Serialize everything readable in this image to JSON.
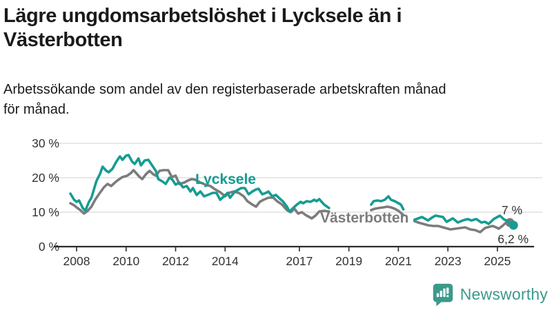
{
  "header": {
    "title": "Lägre ungdomsarbetslöshet i Lycksele än i Västerbotten",
    "title_lines": [
      "Lägre ungdomsarbetslöshet i Lycksele än i",
      "Västerbotten"
    ],
    "subtitle": "Arbetssökande som andel av den registerbaserade arbetskraften månad för månad.",
    "subtitle_lines": [
      "Arbetssökande som andel av den registerbaserade arbetskraften månad",
      "för månad."
    ]
  },
  "footer": {
    "brand": "Newsworthy",
    "brand_color": "#3b9a8b",
    "logo_icon": "speech-bubble-bar-chart-exclamation"
  },
  "chart_data": {
    "type": "line",
    "unit": "%",
    "ylim": [
      0,
      30
    ],
    "grid": "horizontal",
    "axis_color": "#2b2b2b",
    "grid_color": "#dadada",
    "tick_label_color": "#333333",
    "end_label_color": "#333333",
    "yticks": [
      {
        "value": 0,
        "label": "0 %"
      },
      {
        "value": 10,
        "label": "10 %"
      },
      {
        "value": 20,
        "label": "20 %"
      },
      {
        "value": 30,
        "label": "30 %"
      }
    ],
    "xticks": [
      {
        "year": 2008,
        "label": "2008"
      },
      {
        "year": 2010,
        "label": "2010"
      },
      {
        "year": 2012,
        "label": "2012"
      },
      {
        "year": 2014,
        "label": "2014"
      },
      {
        "year": 2017,
        "label": "2017"
      },
      {
        "year": 2019,
        "label": "2019"
      },
      {
        "year": 2021,
        "label": "2021"
      },
      {
        "year": 2023,
        "label": "2023"
      },
      {
        "year": 2025,
        "label": "2025"
      }
    ],
    "series": [
      {
        "name": "Lycksele",
        "color": "#169c92",
        "label_pos": {
          "x": 283,
          "y": 267
        },
        "end_value": 6.2,
        "end_label": {
          "text": "6,2 %",
          "x": 766,
          "y": 353
        },
        "segments": [
          [
            [
              2007.75,
              15.4
            ],
            [
              2007.9,
              13.6
            ],
            [
              2008.0,
              13.0
            ],
            [
              2008.1,
              13.4
            ],
            [
              2008.25,
              11.2
            ],
            [
              2008.35,
              10.4
            ],
            [
              2008.5,
              13.0
            ],
            [
              2008.6,
              14.2
            ],
            [
              2008.7,
              16.6
            ],
            [
              2008.8,
              19.0
            ],
            [
              2008.95,
              21.2
            ],
            [
              2009.05,
              23.2
            ],
            [
              2009.2,
              22.0
            ],
            [
              2009.3,
              21.6
            ],
            [
              2009.45,
              22.6
            ],
            [
              2009.6,
              24.6
            ],
            [
              2009.75,
              26.2
            ],
            [
              2009.85,
              25.2
            ],
            [
              2010.0,
              26.4
            ],
            [
              2010.1,
              26.6
            ],
            [
              2010.25,
              24.6
            ],
            [
              2010.35,
              24.0
            ],
            [
              2010.5,
              25.6
            ],
            [
              2010.6,
              23.6
            ],
            [
              2010.75,
              25.0
            ],
            [
              2010.9,
              25.2
            ],
            [
              2011.05,
              23.6
            ],
            [
              2011.2,
              22.0
            ],
            [
              2011.3,
              19.6
            ],
            [
              2011.45,
              19.0
            ],
            [
              2011.6,
              18.2
            ],
            [
              2011.75,
              20.0
            ],
            [
              2011.85,
              19.6
            ],
            [
              2012.0,
              18.0
            ],
            [
              2012.15,
              18.6
            ],
            [
              2012.3,
              17.2
            ],
            [
              2012.45,
              17.6
            ],
            [
              2012.6,
              16.0
            ],
            [
              2012.7,
              17.0
            ],
            [
              2012.85,
              15.0
            ],
            [
              2013.0,
              16.0
            ],
            [
              2013.15,
              14.6
            ],
            [
              2013.3,
              15.0
            ],
            [
              2013.5,
              15.6
            ],
            [
              2013.65,
              15.6
            ],
            [
              2013.8,
              13.6
            ],
            [
              2013.95,
              14.6
            ],
            [
              2014.1,
              15.6
            ],
            [
              2014.2,
              14.2
            ],
            [
              2014.4,
              16.0
            ],
            [
              2014.55,
              16.6
            ],
            [
              2014.65,
              17.0
            ],
            [
              2014.8,
              17.0
            ],
            [
              2014.95,
              15.2
            ],
            [
              2015.1,
              16.0
            ],
            [
              2015.25,
              16.6
            ],
            [
              2015.35,
              16.8
            ],
            [
              2015.5,
              15.2
            ],
            [
              2015.65,
              15.6
            ],
            [
              2015.75,
              16.0
            ],
            [
              2015.9,
              14.6
            ],
            [
              2016.05,
              15.0
            ],
            [
              2016.2,
              14.0
            ],
            [
              2016.35,
              13.0
            ],
            [
              2016.5,
              11.6
            ],
            [
              2016.6,
              10.2
            ],
            [
              2016.75,
              11.2
            ],
            [
              2016.9,
              12.2
            ],
            [
              2017.05,
              13.0
            ],
            [
              2017.15,
              12.6
            ],
            [
              2017.3,
              13.2
            ],
            [
              2017.45,
              13.0
            ],
            [
              2017.6,
              13.6
            ],
            [
              2017.7,
              13.2
            ],
            [
              2017.8,
              13.8
            ],
            [
              2018.0,
              12.2
            ],
            [
              2018.2,
              11.2
            ]
          ],
          [
            [
              2019.9,
              12.2
            ],
            [
              2020.0,
              13.2
            ],
            [
              2020.15,
              13.4
            ],
            [
              2020.3,
              13.2
            ],
            [
              2020.45,
              13.6
            ],
            [
              2020.6,
              14.6
            ],
            [
              2020.7,
              13.6
            ],
            [
              2020.85,
              13.2
            ],
            [
              2021.0,
              12.6
            ],
            [
              2021.1,
              12.2
            ],
            [
              2021.2,
              10.8
            ]
          ],
          [
            [
              2021.65,
              7.8
            ],
            [
              2021.8,
              8.2
            ],
            [
              2021.95,
              8.6
            ],
            [
              2022.1,
              8.0
            ],
            [
              2022.2,
              7.6
            ],
            [
              2022.35,
              8.4
            ],
            [
              2022.5,
              9.0
            ],
            [
              2022.65,
              8.8
            ],
            [
              2022.8,
              8.6
            ],
            [
              2022.95,
              7.2
            ],
            [
              2023.1,
              7.8
            ],
            [
              2023.2,
              8.2
            ],
            [
              2023.4,
              7.0
            ],
            [
              2023.6,
              7.6
            ],
            [
              2023.8,
              8.0
            ],
            [
              2023.95,
              7.6
            ],
            [
              2024.15,
              8.0
            ],
            [
              2024.35,
              7.0
            ],
            [
              2024.5,
              7.2
            ],
            [
              2024.65,
              6.6
            ],
            [
              2024.85,
              8.0
            ],
            [
              2025.0,
              8.6
            ],
            [
              2025.1,
              9.0
            ],
            [
              2025.25,
              8.0
            ],
            [
              2025.45,
              7.2
            ],
            [
              2025.65,
              6.2
            ]
          ]
        ]
      },
      {
        "name": "Västerbotten",
        "color": "#7c7c7c",
        "label_pos": {
          "x": 464,
          "y": 323
        },
        "end_value": 7.0,
        "end_label": {
          "text": "7 %",
          "x": 757,
          "y": 311
        },
        "segments": [
          [
            [
              2007.75,
              12.6
            ],
            [
              2007.9,
              12.0
            ],
            [
              2008.0,
              11.4
            ],
            [
              2008.15,
              10.6
            ],
            [
              2008.3,
              9.6
            ],
            [
              2008.45,
              10.4
            ],
            [
              2008.6,
              11.6
            ],
            [
              2008.75,
              13.6
            ],
            [
              2008.9,
              15.2
            ],
            [
              2009.1,
              17.2
            ],
            [
              2009.25,
              18.2
            ],
            [
              2009.4,
              17.6
            ],
            [
              2009.55,
              18.6
            ],
            [
              2009.65,
              19.2
            ],
            [
              2009.85,
              20.2
            ],
            [
              2010.05,
              20.6
            ],
            [
              2010.2,
              21.4
            ],
            [
              2010.3,
              22.2
            ],
            [
              2010.45,
              21.0
            ],
            [
              2010.55,
              20.2
            ],
            [
              2010.65,
              19.6
            ],
            [
              2010.8,
              21.0
            ],
            [
              2010.95,
              22.0
            ],
            [
              2011.1,
              21.0
            ],
            [
              2011.2,
              20.6
            ],
            [
              2011.35,
              22.0
            ],
            [
              2011.5,
              22.2
            ],
            [
              2011.7,
              22.2
            ],
            [
              2011.85,
              20.2
            ],
            [
              2012.0,
              20.6
            ],
            [
              2012.15,
              18.2
            ],
            [
              2012.35,
              18.6
            ],
            [
              2012.5,
              19.2
            ],
            [
              2012.65,
              19.6
            ],
            [
              2012.8,
              19.4
            ],
            [
              2013.0,
              18.6
            ],
            [
              2013.2,
              18.0
            ],
            [
              2013.4,
              17.6
            ],
            [
              2013.6,
              16.6
            ],
            [
              2013.8,
              15.8
            ],
            [
              2014.0,
              14.6
            ],
            [
              2014.15,
              15.6
            ],
            [
              2014.35,
              16.0
            ],
            [
              2014.55,
              15.6
            ],
            [
              2014.75,
              14.6
            ],
            [
              2014.9,
              13.2
            ],
            [
              2015.1,
              12.2
            ],
            [
              2015.25,
              11.6
            ],
            [
              2015.4,
              13.0
            ],
            [
              2015.55,
              13.6
            ],
            [
              2015.75,
              14.2
            ],
            [
              2015.95,
              14.2
            ],
            [
              2016.1,
              13.2
            ],
            [
              2016.3,
              12.2
            ],
            [
              2016.5,
              10.6
            ],
            [
              2016.65,
              10.0
            ],
            [
              2016.8,
              11.0
            ],
            [
              2016.95,
              9.6
            ],
            [
              2017.1,
              10.0
            ],
            [
              2017.25,
              9.2
            ],
            [
              2017.4,
              8.6
            ],
            [
              2017.5,
              8.2
            ],
            [
              2017.65,
              9.0
            ],
            [
              2017.8,
              10.2
            ],
            [
              2018.0,
              10.4
            ],
            [
              2018.2,
              10.2
            ]
          ],
          [
            [
              2019.9,
              10.6
            ],
            [
              2020.05,
              11.0
            ],
            [
              2020.2,
              11.2
            ],
            [
              2020.4,
              11.4
            ],
            [
              2020.55,
              11.6
            ],
            [
              2020.7,
              11.4
            ],
            [
              2020.85,
              11.0
            ],
            [
              2021.0,
              10.4
            ],
            [
              2021.2,
              9.2
            ]
          ],
          [
            [
              2021.65,
              7.4
            ],
            [
              2021.8,
              7.0
            ],
            [
              2022.0,
              6.6
            ],
            [
              2022.2,
              6.2
            ],
            [
              2022.4,
              6.0
            ],
            [
              2022.6,
              6.0
            ],
            [
              2022.8,
              5.6
            ],
            [
              2023.0,
              5.2
            ],
            [
              2023.1,
              5.0
            ],
            [
              2023.3,
              5.2
            ],
            [
              2023.5,
              5.4
            ],
            [
              2023.7,
              5.6
            ],
            [
              2023.9,
              5.0
            ],
            [
              2024.1,
              4.8
            ],
            [
              2024.3,
              4.2
            ],
            [
              2024.5,
              5.4
            ],
            [
              2024.7,
              5.8
            ],
            [
              2024.8,
              6.0
            ],
            [
              2024.95,
              5.6
            ],
            [
              2025.05,
              5.2
            ],
            [
              2025.2,
              6.0
            ],
            [
              2025.35,
              7.0
            ],
            [
              2025.5,
              7.0
            ]
          ]
        ]
      }
    ]
  }
}
